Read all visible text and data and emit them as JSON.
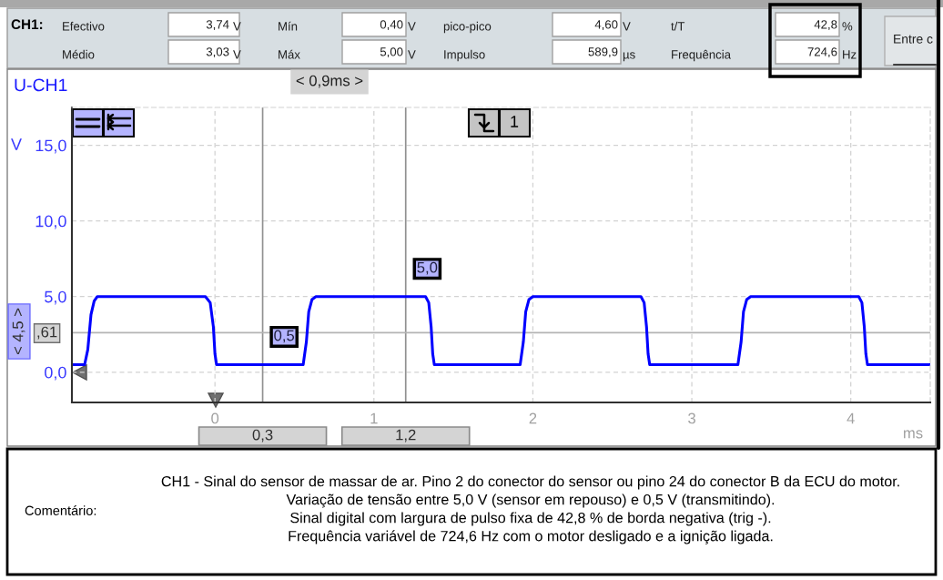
{
  "chart_data": {
    "type": "line",
    "title": "U-CH1",
    "xlabel": "ms",
    "ylabel": "V",
    "x": [
      -0.9,
      -0.82,
      -0.8,
      -0.78,
      -0.76,
      -0.74,
      -0.06,
      -0.03,
      -0.01,
      0.0,
      0.01,
      0.555,
      0.575,
      0.59,
      0.61,
      0.635,
      1.325,
      1.345,
      1.36,
      1.37,
      1.38,
      1.92,
      1.94,
      1.955,
      1.975,
      2.0,
      2.68,
      2.7,
      2.715,
      2.725,
      2.735,
      3.29,
      3.31,
      3.325,
      3.345,
      3.37,
      4.05,
      4.07,
      4.085,
      4.095,
      4.105,
      4.5
    ],
    "series": [
      {
        "color": "#0000ff",
        "values": [
          0.5,
          0.5,
          1.5,
          3.8,
          4.7,
          5.0,
          5.0,
          4.6,
          3.0,
          1.2,
          0.5,
          0.5,
          2.0,
          4.0,
          4.8,
          5.0,
          5.0,
          4.6,
          3.0,
          1.2,
          0.5,
          0.5,
          2.0,
          4.0,
          4.8,
          5.0,
          5.0,
          4.6,
          3.0,
          1.2,
          0.5,
          0.5,
          2.0,
          4.0,
          4.8,
          5.0,
          5.0,
          4.6,
          3.0,
          1.2,
          0.5,
          0.5
        ]
      }
    ],
    "xlim": [
      -0.9,
      4.5
    ],
    "xticks": [
      0,
      1,
      2,
      3,
      4
    ],
    "ylim": [
      -2,
      17.5
    ],
    "yticks": [
      {
        "value": 0,
        "label": "0,0"
      },
      {
        "value": 5,
        "label": "5,0"
      },
      {
        "value": 10,
        "label": "10,0"
      },
      {
        "value": 15,
        "label": "15,0"
      }
    ],
    "grid": true,
    "line_style": "solid",
    "ref_lines": [
      {
        "axis": "x",
        "value": 0.3,
        "label": "0,3",
        "color": "#909090"
      },
      {
        "axis": "x",
        "value": 1.2,
        "label": "1,2",
        "color": "#909090"
      },
      {
        "axis": "y",
        "value": 2.61,
        "color": "#b4b4b4"
      }
    ],
    "annotations": [
      "CH1:",
      "Efectivo",
      "3,74",
      "V",
      "Médio",
      "3,03",
      "V",
      "Mín",
      "0,40",
      "V",
      "Máx",
      "5,00",
      "V",
      "pico-pico",
      "4,60",
      "V",
      "Impulso",
      "589,9",
      "µs",
      "t/T",
      "42,8",
      "%",
      "Frequência",
      "724,6",
      "Hz",
      "Entre c",
      "< 0,9ms >",
      "< 4,5 >",
      ",61",
      "1",
      "Comentário:",
      "CH1 - Sinal do sensor de massar de ar. Pino 2 do conector do sensor ou pino 24 do conector B da ECU do motor.",
      "Variação de tensão entre 5,0 V (sensor em repouso) e 0,5 V (transmitindo).",
      "Sinal digital com largura de pulso fixa de 42,8 % de borda negativa (trig -).",
      "Frequência variável de 724,6 Hz com o motor desligado e a ignição ligada.",
      {
        "text": "0,5",
        "x": 0.3,
        "y": 0.5
      },
      {
        "text": "5,0",
        "x": 1.2,
        "y": 5.0
      }
    ]
  }
}
